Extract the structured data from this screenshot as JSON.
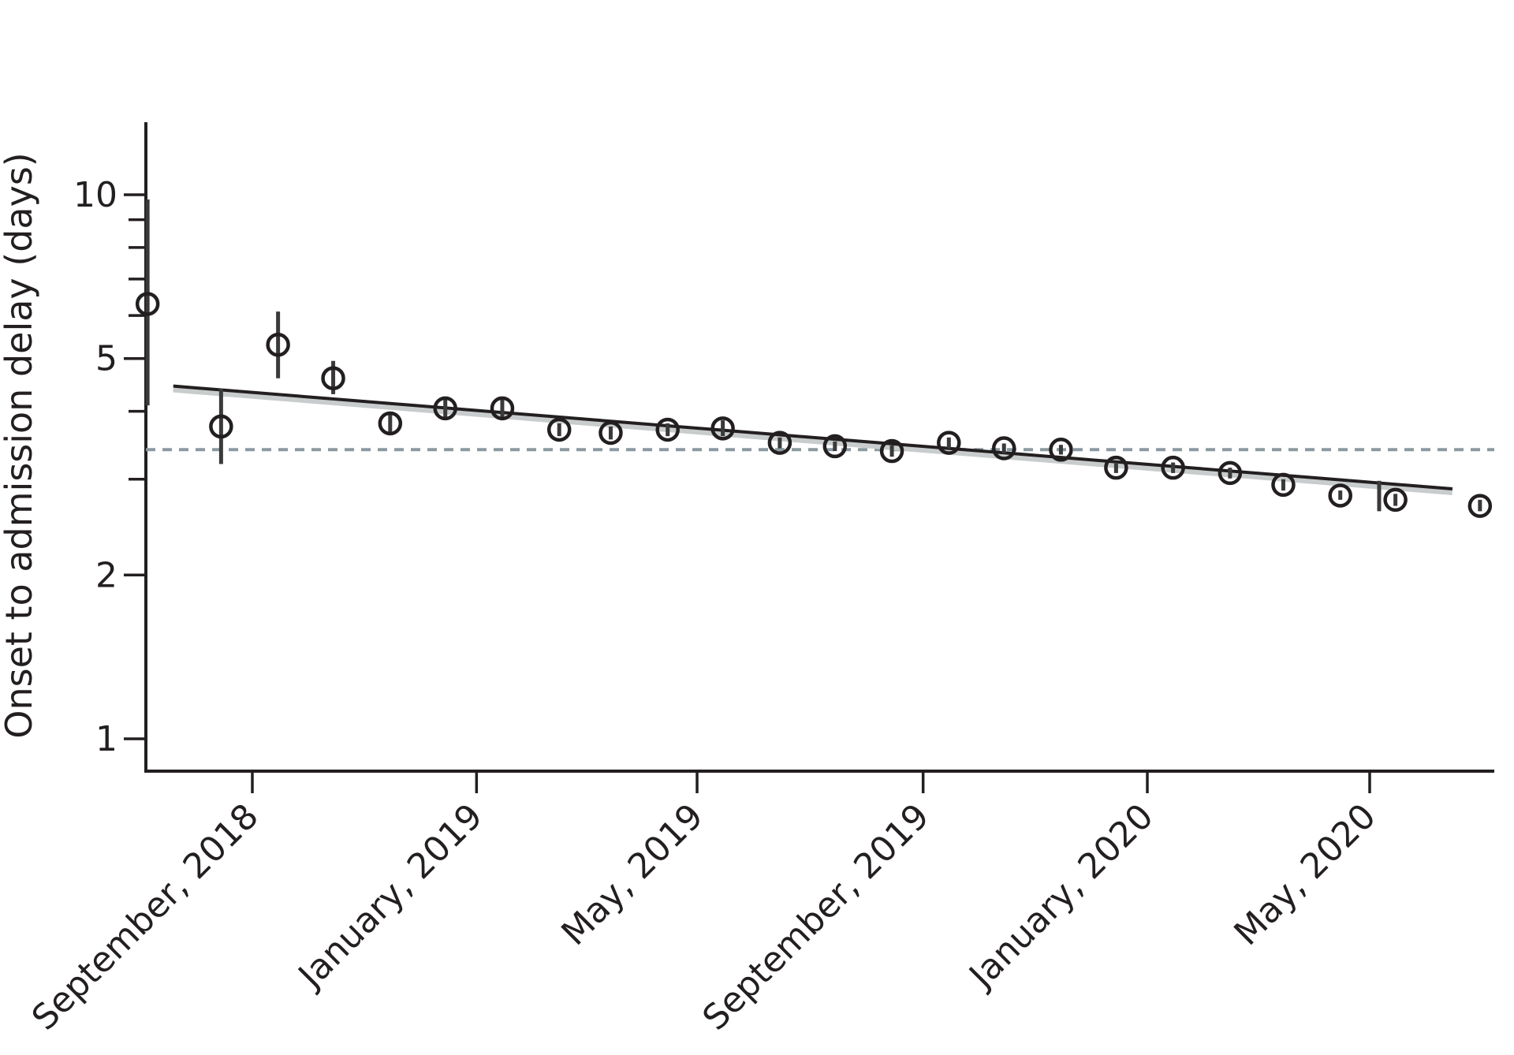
{
  "chart_data": {
    "type": "scatter",
    "title": "",
    "xlabel": "",
    "ylabel": "Onset to admission delay (days)",
    "y_scale": "log",
    "ylim": [
      0.9,
      13
    ],
    "xlim": [
      "2018-06-27",
      "2020-08-01"
    ],
    "y_ticks": [
      {
        "value": 1,
        "label": "1"
      },
      {
        "value": 2,
        "label": "2"
      },
      {
        "value": 5,
        "label": "5"
      },
      {
        "value": 10,
        "label": "10"
      }
    ],
    "y_minor_ticks": [
      3,
      4,
      6,
      7,
      8,
      9
    ],
    "x_ticks": [
      {
        "date": "2018-09-01",
        "label": "September, 2018"
      },
      {
        "date": "2019-01-01",
        "label": "January, 2019"
      },
      {
        "date": "2019-05-01",
        "label": "May, 2019"
      },
      {
        "date": "2019-09-01",
        "label": "September, 2019"
      },
      {
        "date": "2020-01-01",
        "label": "January, 2020"
      },
      {
        "date": "2020-05-01",
        "label": "May, 2020"
      }
    ],
    "points": [
      {
        "date": "2018-07-06",
        "y": 6.3,
        "lower": 4.1,
        "upper": 9.8
      },
      {
        "date": "2018-08-15",
        "y": 3.75,
        "lower": 3.2,
        "upper": 4.4
      },
      {
        "date": "2018-09-15",
        "y": 5.3,
        "lower": 4.6,
        "upper": 6.1
      },
      {
        "date": "2018-10-15",
        "y": 4.6,
        "lower": 4.3,
        "upper": 4.95
      },
      {
        "date": "2018-11-15",
        "y": 3.8,
        "lower": 3.65,
        "upper": 3.95
      },
      {
        "date": "2018-12-15",
        "y": 4.05,
        "lower": 3.9,
        "upper": 4.2
      },
      {
        "date": "2019-01-15",
        "y": 4.05,
        "lower": 3.9,
        "upper": 4.2
      },
      {
        "date": "2019-02-15",
        "y": 3.7,
        "lower": 3.6,
        "upper": 3.8
      },
      {
        "date": "2019-03-15",
        "y": 3.65,
        "lower": 3.55,
        "upper": 3.75
      },
      {
        "date": "2019-04-15",
        "y": 3.7,
        "lower": 3.6,
        "upper": 3.8
      },
      {
        "date": "2019-05-15",
        "y": 3.72,
        "lower": 3.6,
        "upper": 3.85
      },
      {
        "date": "2019-06-15",
        "y": 3.5,
        "lower": 3.42,
        "upper": 3.58
      },
      {
        "date": "2019-07-15",
        "y": 3.45,
        "lower": 3.38,
        "upper": 3.52
      },
      {
        "date": "2019-08-15",
        "y": 3.38,
        "lower": 3.3,
        "upper": 3.46
      },
      {
        "date": "2019-09-15",
        "y": 3.5,
        "lower": 3.42,
        "upper": 3.58
      },
      {
        "date": "2019-10-15",
        "y": 3.42,
        "lower": 3.35,
        "upper": 3.49
      },
      {
        "date": "2019-11-15",
        "y": 3.4,
        "lower": 3.33,
        "upper": 3.47
      },
      {
        "date": "2019-12-15",
        "y": 3.15,
        "lower": 3.08,
        "upper": 3.22
      },
      {
        "date": "2020-01-15",
        "y": 3.15,
        "lower": 3.08,
        "upper": 3.22
      },
      {
        "date": "2020-02-15",
        "y": 3.08,
        "lower": 3.01,
        "upper": 3.15
      },
      {
        "date": "2020-03-15",
        "y": 2.93,
        "lower": 2.86,
        "upper": 3.0
      },
      {
        "date": "2020-04-15",
        "y": 2.8,
        "lower": 2.75,
        "upper": 2.86
      },
      {
        "date": "2020-05-15",
        "y": 2.75,
        "lower": 2.68,
        "upper": 2.82
      },
      {
        "date": "2020-06-30",
        "y": 2.68,
        "lower": 2.62,
        "upper": 2.75
      }
    ],
    "extra_bars": [
      {
        "date": "2020-05-01",
        "lower": 2.62,
        "upper": 2.98
      }
    ],
    "trend_line": {
      "start": {
        "date": "2018-07-20",
        "y": 4.45
      },
      "end": {
        "date": "2020-06-15",
        "y": 2.88
      }
    },
    "reference_line": {
      "y": 3.4,
      "style": "dashed",
      "color": "#8a9aa0"
    },
    "colors": {
      "ink": "#231f20",
      "trend_band": "#c8cccd",
      "reference": "#8a9aa0"
    },
    "grid": false,
    "legend": "none"
  }
}
